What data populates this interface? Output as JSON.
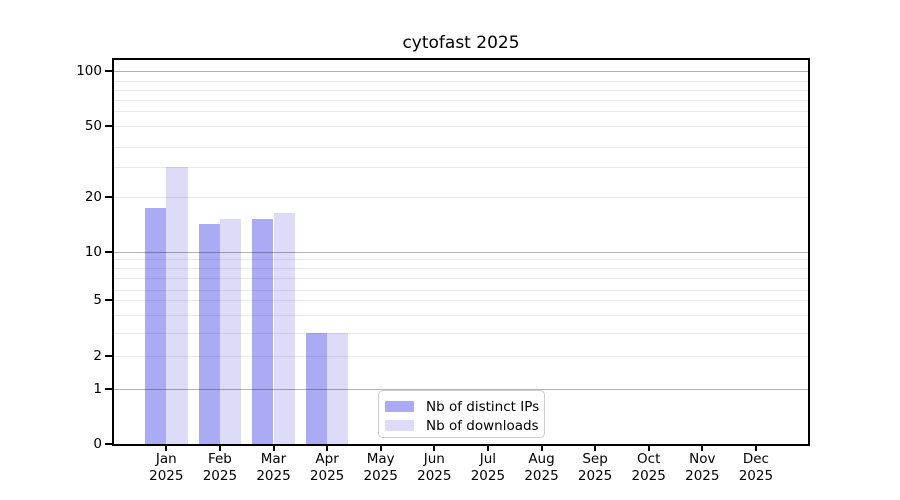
{
  "window": {
    "background": "#ffffff"
  },
  "chart_data": {
    "type": "bar",
    "title": "cytofast 2025",
    "categories": [
      "Jan 2025",
      "Feb 2025",
      "Mar 2025",
      "Apr 2025",
      "May 2025",
      "Jun 2025",
      "Jul 2025",
      "Aug 2025",
      "Sep 2025",
      "Oct 2025",
      "Nov 2025",
      "Dec 2025"
    ],
    "x_tick_months": [
      "Jan",
      "Feb",
      "Mar",
      "Apr",
      "May",
      "Jun",
      "Jul",
      "Aug",
      "Sep",
      "Oct",
      "Nov",
      "Dec"
    ],
    "x_tick_year": "2025",
    "series": [
      {
        "name": "Nb of distinct IPs",
        "color": "#aaaaf5",
        "values": [
          18,
          15,
          16,
          3,
          0,
          0,
          0,
          0,
          0,
          0,
          0,
          0
        ]
      },
      {
        "name": "Nb of downloads",
        "color": "#dcdcf9",
        "values": [
          30,
          16,
          17,
          3,
          0,
          0,
          0,
          0,
          0,
          0,
          0,
          0
        ]
      }
    ],
    "y_axis": {
      "scale": "log-like",
      "range": [
        0,
        100
      ],
      "ticks": [
        0,
        1,
        2,
        5,
        10,
        20,
        50,
        100
      ],
      "tick_labels": [
        "0",
        "1",
        "2",
        "5",
        "10",
        "20",
        "50",
        "100"
      ],
      "major_gridlines": [
        1,
        2,
        5,
        10,
        20,
        50,
        100
      ],
      "minor_gridlines": [
        3,
        4,
        6,
        7,
        8,
        9,
        30,
        40,
        60,
        70,
        80,
        90
      ],
      "emphasized_gridlines": [
        1,
        10,
        100
      ]
    },
    "legend": {
      "position": "lower-center",
      "entries": [
        "Nb of distinct IPs",
        "Nb of downloads"
      ]
    },
    "grid": true
  },
  "colors": {
    "bar_distinct_ips": "#aaaaf5",
    "bar_downloads": "#dcdcf9",
    "gridline_emphasized": "rgba(0,0,0,0.30)",
    "gridline_light": "rgba(0,0,0,0.085)",
    "spine": "#000000",
    "legend_border": "#cccccc",
    "text": "#000000"
  }
}
